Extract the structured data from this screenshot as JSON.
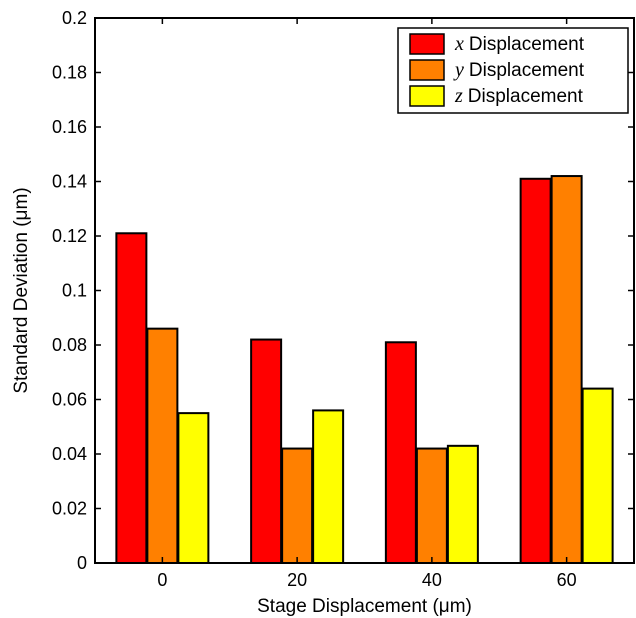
{
  "chart_data": {
    "type": "bar",
    "categories": [
      "0",
      "20",
      "40",
      "60"
    ],
    "series": [
      {
        "name": "x Displacement",
        "var": "x",
        "label": "Displacement",
        "color": "#ff0000",
        "values": [
          0.121,
          0.082,
          0.081,
          0.141
        ]
      },
      {
        "name": "y Displacement",
        "var": "y",
        "label": "Displacement",
        "color": "#ff8000",
        "values": [
          0.086,
          0.042,
          0.042,
          0.142
        ]
      },
      {
        "name": "z Displacement",
        "var": "z",
        "label": "Displacement",
        "color": "#ffff00",
        "values": [
          0.055,
          0.056,
          0.043,
          0.064
        ]
      }
    ],
    "xlabel": "Stage Displacement (μm)",
    "ylabel": "Standard Deviation (μm)",
    "ylim": [
      0,
      0.2
    ],
    "yticks": [
      "0",
      "0.02",
      "0.04",
      "0.06",
      "0.08",
      "0.1",
      "0.12",
      "0.14",
      "0.16",
      "0.18",
      "0.2"
    ],
    "grid": false,
    "legend_position": "top-right"
  }
}
